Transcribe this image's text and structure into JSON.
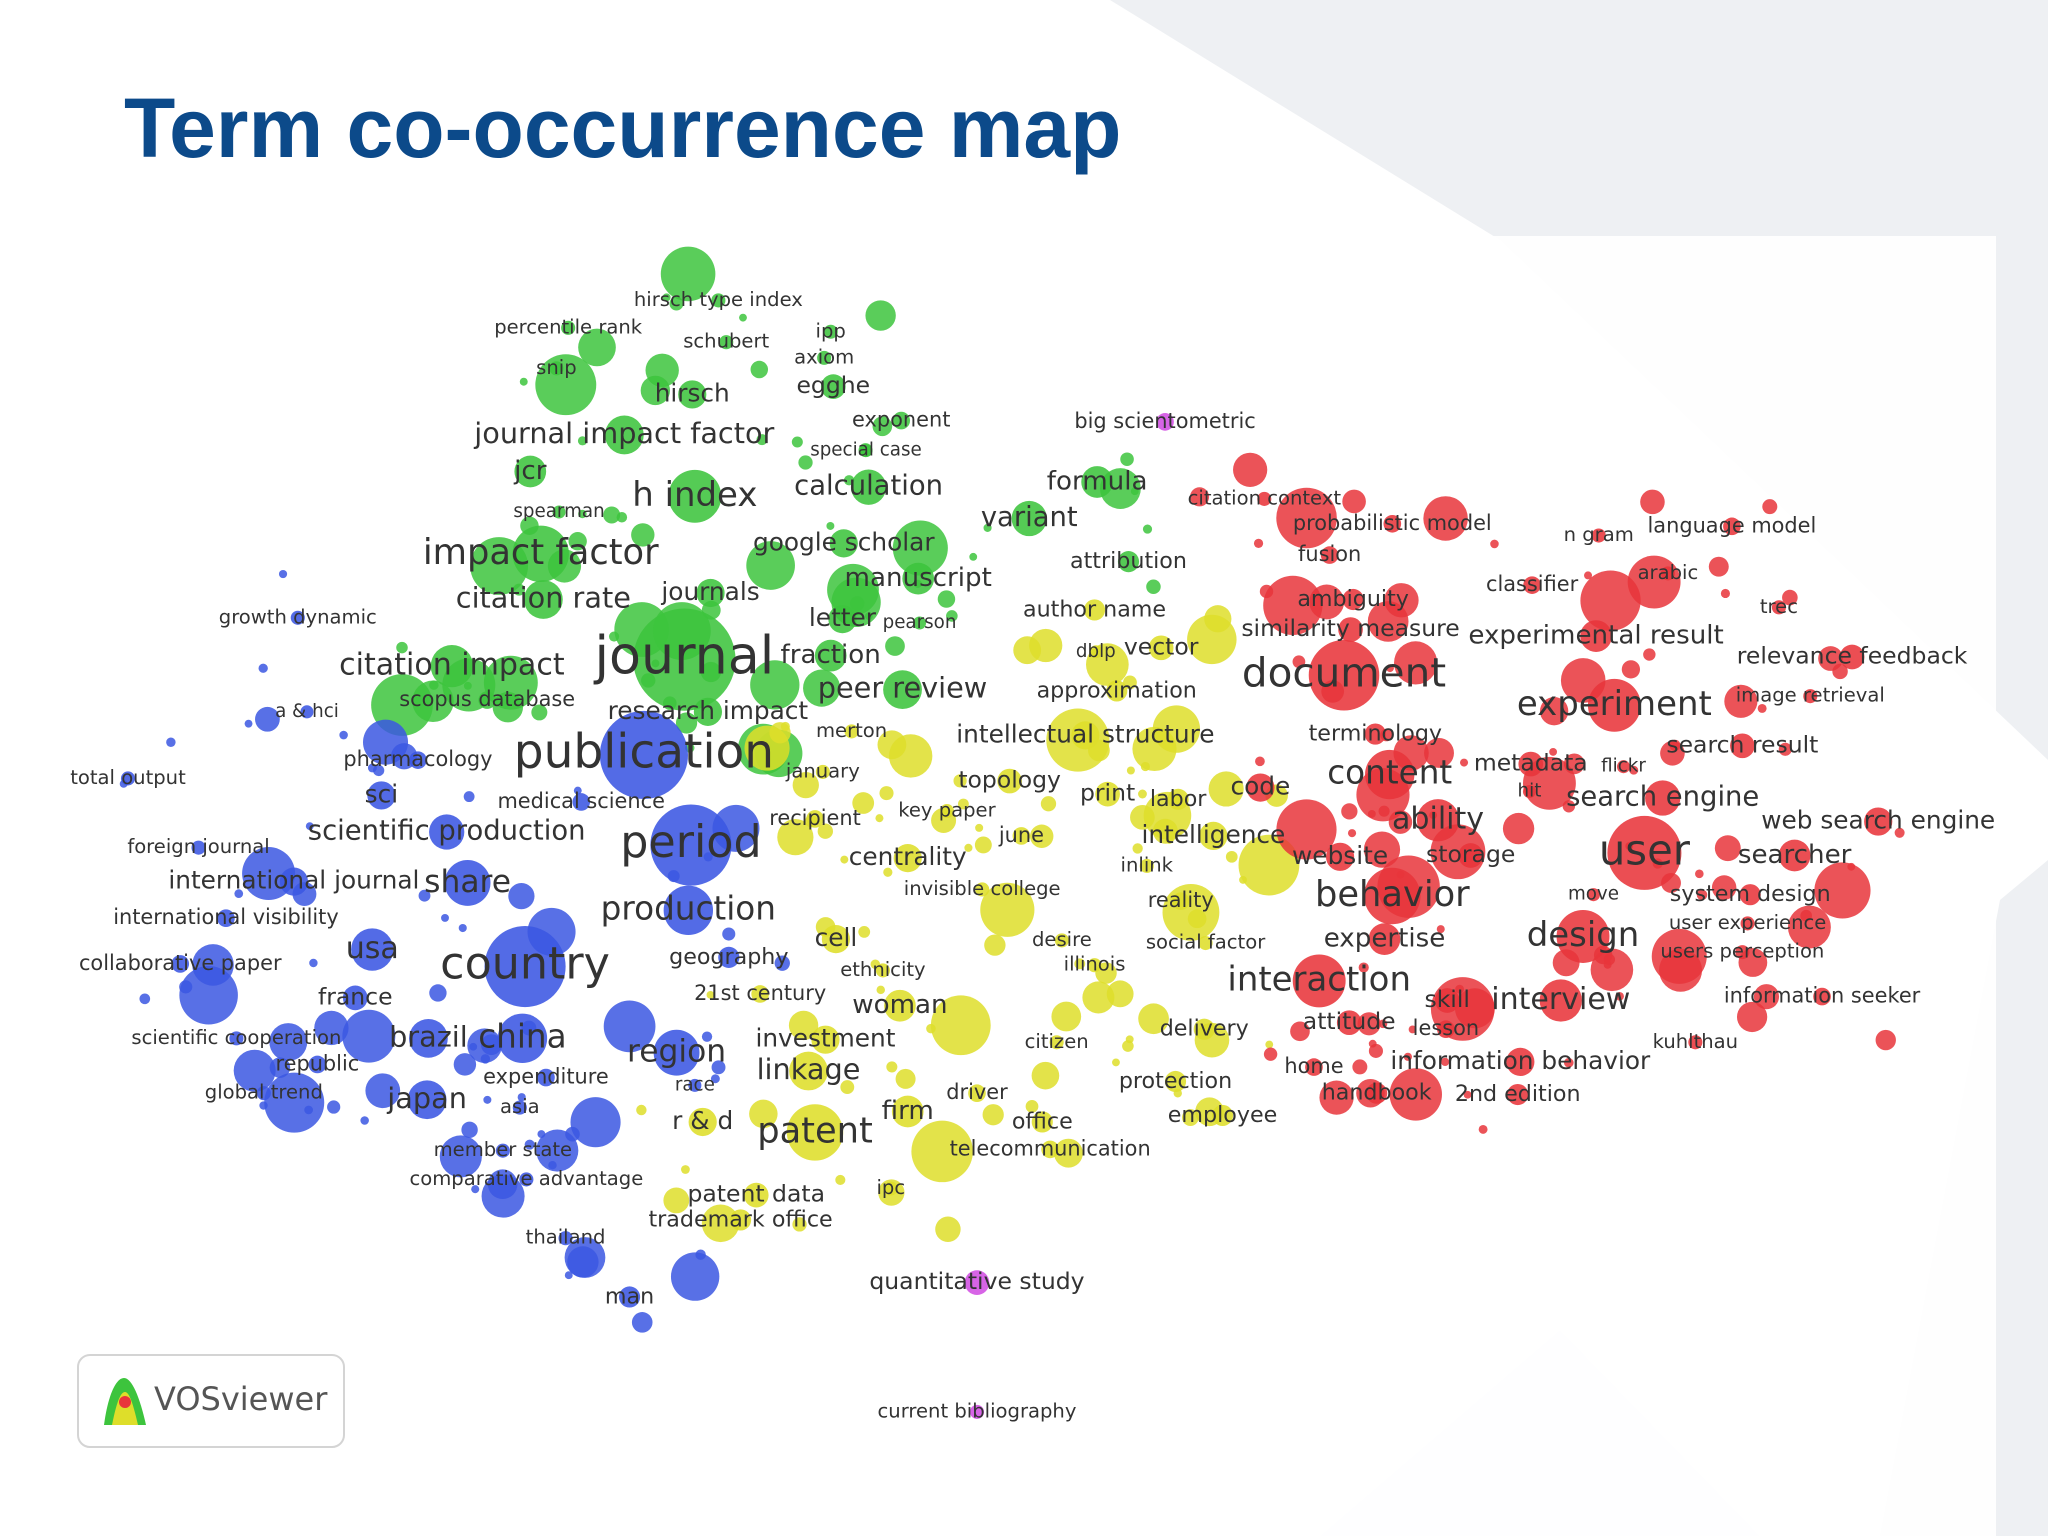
{
  "header": {
    "title": "Term co-occurrence map"
  },
  "map": {
    "clusters": [
      {
        "color": "#3dc43d",
        "terms": [
          "hirsch type index",
          "percentile rank",
          "schubert",
          "ipp",
          "axiom",
          "snip",
          "hirsch",
          "egghe",
          "journal impact factor",
          "exponent",
          "special case",
          "jcr",
          "calculation",
          "spearman",
          "h index",
          "variant",
          "google scholar",
          "impact factor",
          "citation rate",
          "journals",
          "manuscript",
          "letter",
          "pearson",
          "journal",
          "fraction",
          "citation impact",
          "peer review",
          "research impact",
          "scopus database",
          "formula",
          "attribution"
        ]
      },
      {
        "color": "#3b57e2",
        "terms": [
          "growth dynamic",
          "a & hci",
          "publication",
          "pharmacology",
          "sci",
          "medical science",
          "total output",
          "scientific production",
          "period",
          "foreign journal",
          "international journal",
          "share",
          "production",
          "international visibility",
          "usa",
          "collaborative paper",
          "country",
          "geography",
          "france",
          "scientific cooperation",
          "brazil",
          "china",
          "region",
          "republic",
          "expenditure",
          "global trend",
          "japan",
          "asia",
          "member state",
          "comparative advantage",
          "thailand",
          "man",
          "race"
        ]
      },
      {
        "color": "#dede2a",
        "terms": [
          "merton",
          "january",
          "recipient",
          "key paper",
          "centrality",
          "invisible college",
          "cell",
          "ethnicity",
          "21st century",
          "woman",
          "investment",
          "linkage",
          "r & d",
          "patent",
          "firm",
          "patent data",
          "trademark office",
          "ipc",
          "intellectual structure",
          "topology",
          "june",
          "approximation",
          "vector",
          "dblp",
          "author name",
          "print",
          "labor",
          "intelligence",
          "inlink",
          "reality",
          "desire",
          "illinois",
          "social factor",
          "citizen",
          "driver",
          "office",
          "telecommunication",
          "delivery",
          "protection",
          "employee"
        ]
      },
      {
        "color": "#e8353b",
        "terms": [
          "citation context",
          "probabilistic model",
          "fusion",
          "n gram",
          "language model",
          "classifier",
          "arabic",
          "ambiguity",
          "trec",
          "similarity measure",
          "experimental result",
          "relevance feedback",
          "document",
          "experiment",
          "image retrieval",
          "terminology",
          "search result",
          "metadata",
          "flickr",
          "code",
          "content",
          "hit",
          "search engine",
          "ability",
          "web search engine",
          "website",
          "storage",
          "user",
          "searcher",
          "behavior",
          "move",
          "system design",
          "user experience",
          "expertise",
          "design",
          "users perception",
          "interaction",
          "skill",
          "interview",
          "information seeker",
          "attitude",
          "lesson",
          "kuhlthau",
          "home",
          "information behavior",
          "handbook",
          "2nd edition"
        ]
      },
      {
        "color": "#d24fe2",
        "terms": [
          "big scientometric",
          "quantitative study",
          "current bibliography"
        ]
      }
    ]
  },
  "logo": {
    "label": "VOSviewer"
  }
}
